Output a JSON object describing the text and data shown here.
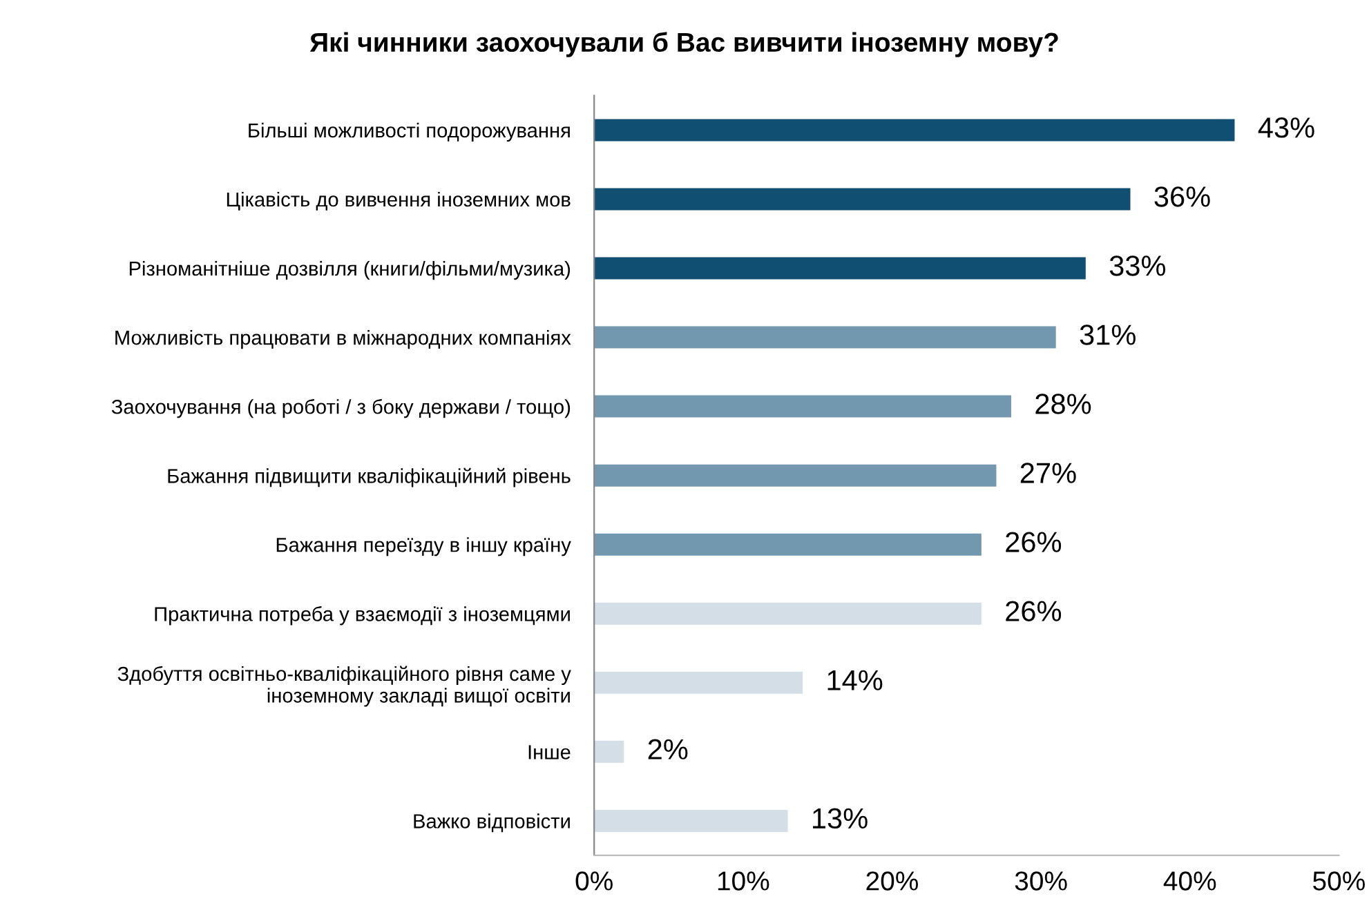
{
  "chart_data": {
    "type": "bar",
    "orientation": "horizontal",
    "title": "Які чинники заохочували б Вас вивчити іноземну мову?",
    "categories": [
      "Більші можливості подорожування",
      "Цікавість до вивчення іноземних мов",
      "Різноманітніше дозвілля (книги/фільми/музика)",
      "Можливість працювати в міжнародних компаніях",
      "Заохочування (на роботі / з боку держави / тощо)",
      "Бажання підвищити кваліфікаційний рівень",
      "Бажання переїзду в іншу країну",
      "Практична потреба у взаємодії з іноземцями",
      "Здобуття освітньо-кваліфікаційного рівня саме у\nіноземному закладі вищої освіти",
      "Інше",
      "Важко відповісти"
    ],
    "values": [
      43,
      36,
      33,
      31,
      28,
      27,
      26,
      26,
      14,
      2,
      13
    ],
    "value_labels": [
      "43%",
      "36%",
      "33%",
      "31%",
      "28%",
      "27%",
      "26%",
      "26%",
      "14%",
      "2%",
      "13%"
    ],
    "colors": [
      "#104e72",
      "#104e72",
      "#104e72",
      "#7298b0",
      "#7298b0",
      "#7298b0",
      "#7298b0",
      "#d3dee6",
      "#d3dee6",
      "#d3dee6",
      "#d3dee6"
    ],
    "xlim": [
      0,
      50
    ],
    "xticks": [
      {
        "value": 0,
        "label": "0%"
      },
      {
        "value": 10,
        "label": "10%"
      },
      {
        "value": 20,
        "label": "20%"
      },
      {
        "value": 30,
        "label": "30%"
      },
      {
        "value": 40,
        "label": "40%"
      },
      {
        "value": 50,
        "label": "50%"
      }
    ],
    "grid": false,
    "legend": false
  }
}
